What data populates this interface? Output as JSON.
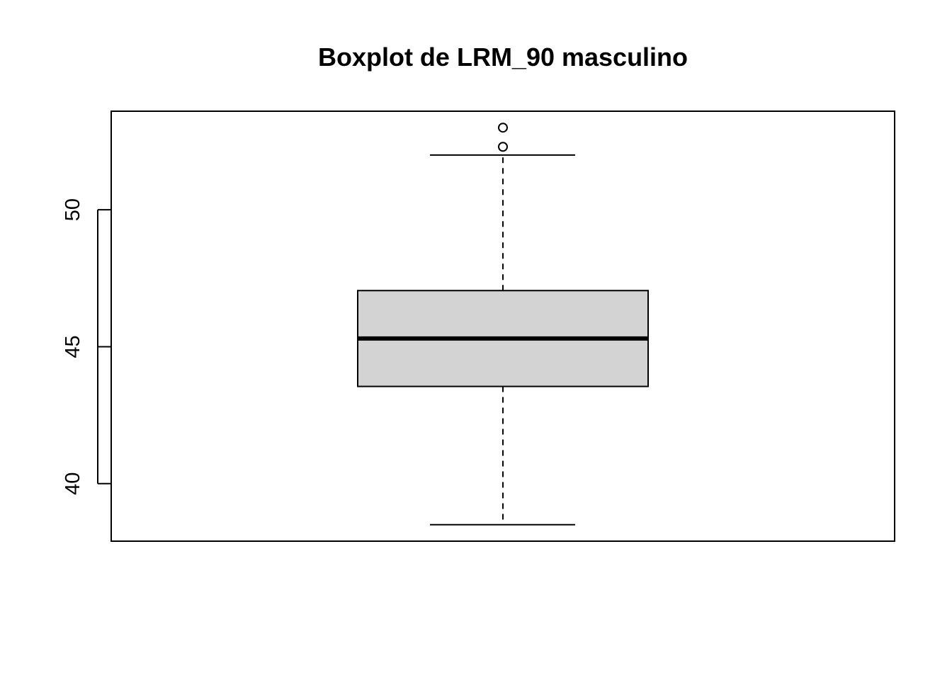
{
  "chart_data": {
    "type": "boxplot",
    "title": "Boxplot de LRM_90 masculino",
    "xlabel": "",
    "ylabel": "",
    "ylim": [
      37.9,
      53.6
    ],
    "yticks": [
      40,
      45,
      50
    ],
    "ytick_labels": [
      "40",
      "45",
      "50"
    ],
    "grid": false,
    "box": {
      "lower_whiskers": 38.5,
      "q1": 43.55,
      "median": 45.3,
      "q3": 47.05,
      "upper_whiskers": 52.0,
      "outliers": [
        52.3,
        53.0
      ]
    },
    "colors": {
      "box_fill": "#d3d3d3",
      "stroke": "#000000"
    }
  }
}
